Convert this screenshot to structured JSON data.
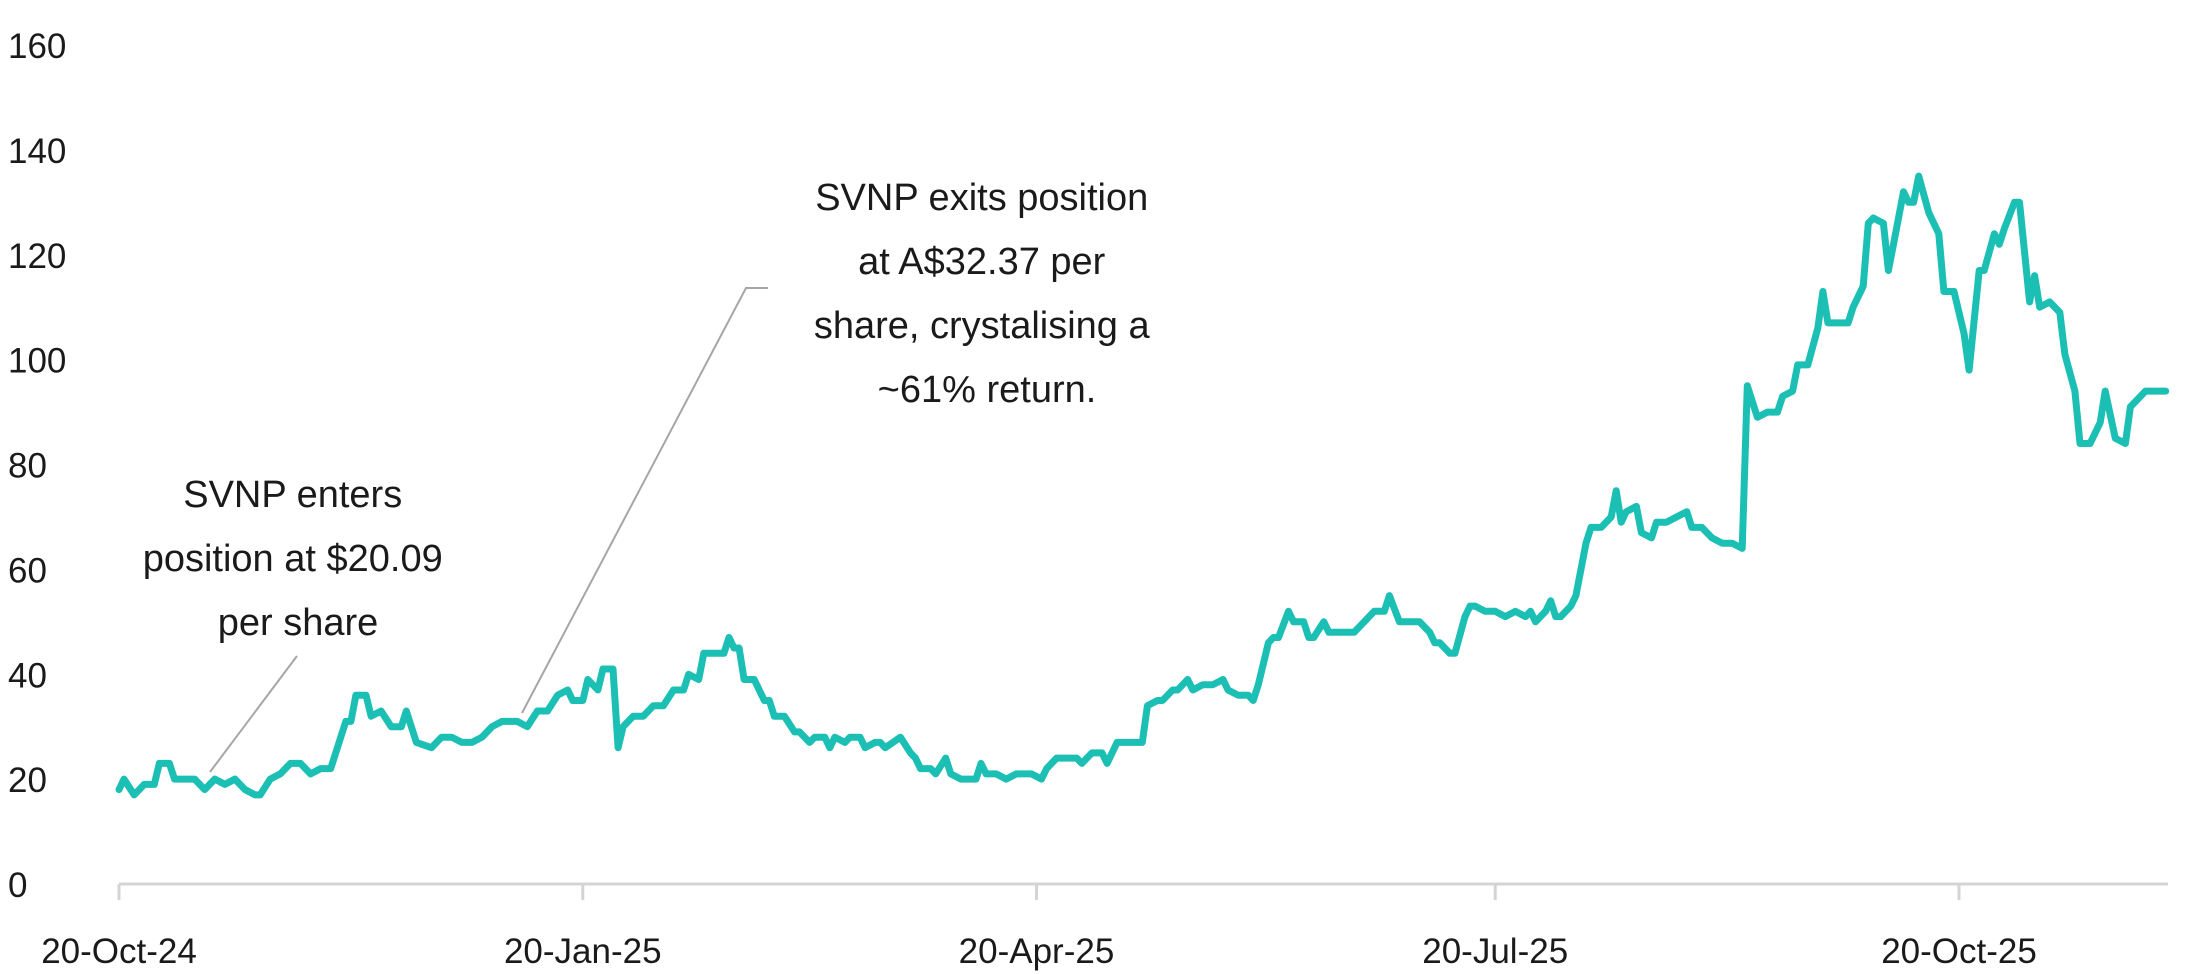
{
  "chart_data": {
    "type": "line",
    "title": "",
    "xlabel": "",
    "ylabel": "",
    "ylim": [
      0,
      160
    ],
    "yticks": [
      "0",
      "20",
      "40",
      "60",
      "80",
      "100",
      "120",
      "140",
      "160"
    ],
    "xlim": [
      "2024-10-20",
      "2025-11-30"
    ],
    "xticks": [
      {
        "date": "2024-10-20",
        "label": "20-Oct-24"
      },
      {
        "date": "2025-01-20",
        "label": "20-Jan-25"
      },
      {
        "date": "2025-04-20",
        "label": "20-Apr-25"
      },
      {
        "date": "2025-07-20",
        "label": "20-Jul-25"
      },
      {
        "date": "2025-10-20",
        "label": "20-Oct-25"
      }
    ],
    "grid": false,
    "legend": "none",
    "line_color": "#1cbfb4",
    "annotations": [
      {
        "lines": [
          "SVNP enters",
          "position at $20.09",
          "per share"
        ],
        "date": "2024-11-06",
        "value": 19
      },
      {
        "lines": [
          "SVNP exits position",
          "at A$32.37 per",
          "share, crystalising a",
          "~61% return."
        ],
        "date": "2025-01-09",
        "value": 31
      }
    ],
    "series": [
      {
        "points": [
          [
            "2024-10-20",
            18
          ],
          [
            "2024-10-21",
            20
          ],
          [
            "2024-10-23",
            17
          ],
          [
            "2024-10-25",
            19
          ],
          [
            "2024-10-27",
            19
          ],
          [
            "2024-10-28",
            23
          ],
          [
            "2024-10-30",
            23
          ],
          [
            "2024-10-31",
            20
          ],
          [
            "2024-11-02",
            20
          ],
          [
            "2024-11-04",
            20
          ],
          [
            "2024-11-06",
            18
          ],
          [
            "2024-11-08",
            20
          ],
          [
            "2024-11-10",
            19
          ],
          [
            "2024-11-12",
            20
          ],
          [
            "2024-11-14",
            18
          ],
          [
            "2024-11-16",
            17
          ],
          [
            "2024-11-17",
            17
          ],
          [
            "2024-11-19",
            20
          ],
          [
            "2024-11-21",
            21
          ],
          [
            "2024-11-23",
            23
          ],
          [
            "2024-11-25",
            23
          ],
          [
            "2024-11-27",
            21
          ],
          [
            "2024-11-29",
            22
          ],
          [
            "2024-12-01",
            22
          ],
          [
            "2024-12-04",
            31
          ],
          [
            "2024-12-05",
            31
          ],
          [
            "2024-12-06",
            36
          ],
          [
            "2024-12-08",
            36
          ],
          [
            "2024-12-09",
            32
          ],
          [
            "2024-12-11",
            33
          ],
          [
            "2024-12-13",
            30
          ],
          [
            "2024-12-15",
            30
          ],
          [
            "2024-12-16",
            33
          ],
          [
            "2024-12-18",
            27
          ],
          [
            "2024-12-21",
            26
          ],
          [
            "2024-12-23",
            28
          ],
          [
            "2024-12-25",
            28
          ],
          [
            "2024-12-27",
            27
          ],
          [
            "2024-12-29",
            27
          ],
          [
            "2024-12-31",
            28
          ],
          [
            "2025-01-02",
            30
          ],
          [
            "2025-01-04",
            31
          ],
          [
            "2025-01-07",
            31
          ],
          [
            "2025-01-09",
            30
          ],
          [
            "2025-01-11",
            33
          ],
          [
            "2025-01-13",
            33
          ],
          [
            "2025-01-15",
            36
          ],
          [
            "2025-01-17",
            37
          ],
          [
            "2025-01-18",
            35
          ],
          [
            "2025-01-20",
            35
          ],
          [
            "2025-01-21",
            39
          ],
          [
            "2025-01-23",
            37
          ],
          [
            "2025-01-24",
            41
          ],
          [
            "2025-01-26",
            41
          ],
          [
            "2025-01-27",
            26
          ],
          [
            "2025-01-28",
            30
          ],
          [
            "2025-01-30",
            32
          ],
          [
            "2025-02-01",
            32
          ],
          [
            "2025-02-03",
            34
          ],
          [
            "2025-02-05",
            34
          ],
          [
            "2025-02-07",
            37
          ],
          [
            "2025-02-09",
            37
          ],
          [
            "2025-02-10",
            40
          ],
          [
            "2025-02-12",
            39
          ],
          [
            "2025-02-13",
            44
          ],
          [
            "2025-02-15",
            44
          ],
          [
            "2025-02-17",
            44
          ],
          [
            "2025-02-18",
            47
          ],
          [
            "2025-02-19",
            45
          ],
          [
            "2025-02-20",
            45
          ],
          [
            "2025-02-21",
            39
          ],
          [
            "2025-02-23",
            39
          ],
          [
            "2025-02-25",
            35
          ],
          [
            "2025-02-26",
            35
          ],
          [
            "2025-02-27",
            32
          ],
          [
            "2025-03-01",
            32
          ],
          [
            "2025-03-03",
            29
          ],
          [
            "2025-03-04",
            29
          ],
          [
            "2025-03-06",
            27
          ],
          [
            "2025-03-07",
            28
          ],
          [
            "2025-03-09",
            28
          ],
          [
            "2025-03-10",
            26
          ],
          [
            "2025-03-11",
            28
          ],
          [
            "2025-03-13",
            27
          ],
          [
            "2025-03-14",
            28
          ],
          [
            "2025-03-16",
            28
          ],
          [
            "2025-03-17",
            26
          ],
          [
            "2025-03-19",
            27
          ],
          [
            "2025-03-20",
            27
          ],
          [
            "2025-03-21",
            26
          ],
          [
            "2025-03-24",
            28
          ],
          [
            "2025-03-26",
            25
          ],
          [
            "2025-03-27",
            24
          ],
          [
            "2025-03-28",
            22
          ],
          [
            "2025-03-30",
            22
          ],
          [
            "2025-03-31",
            21
          ],
          [
            "2025-04-02",
            24
          ],
          [
            "2025-04-03",
            21
          ],
          [
            "2025-04-05",
            20
          ],
          [
            "2025-04-07",
            20
          ],
          [
            "2025-04-08",
            20
          ],
          [
            "2025-04-09",
            23
          ],
          [
            "2025-04-10",
            21
          ],
          [
            "2025-04-12",
            21
          ],
          [
            "2025-04-14",
            20
          ],
          [
            "2025-04-16",
            21
          ],
          [
            "2025-04-19",
            21
          ],
          [
            "2025-04-21",
            20
          ],
          [
            "2025-04-22",
            22
          ],
          [
            "2025-04-24",
            24
          ],
          [
            "2025-04-26",
            24
          ],
          [
            "2025-04-28",
            24
          ],
          [
            "2025-04-29",
            23
          ],
          [
            "2025-05-01",
            25
          ],
          [
            "2025-05-03",
            25
          ],
          [
            "2025-05-04",
            23
          ],
          [
            "2025-05-06",
            27
          ],
          [
            "2025-05-09",
            27
          ],
          [
            "2025-05-11",
            27
          ],
          [
            "2025-05-12",
            34
          ],
          [
            "2025-05-14",
            35
          ],
          [
            "2025-05-15",
            35
          ],
          [
            "2025-05-17",
            37
          ],
          [
            "2025-05-18",
            37
          ],
          [
            "2025-05-20",
            39
          ],
          [
            "2025-05-21",
            37
          ],
          [
            "2025-05-23",
            38
          ],
          [
            "2025-05-25",
            38
          ],
          [
            "2025-05-27",
            39
          ],
          [
            "2025-05-28",
            37
          ],
          [
            "2025-05-30",
            36
          ],
          [
            "2025-06-01",
            36
          ],
          [
            "2025-06-02",
            35
          ],
          [
            "2025-06-03",
            38
          ],
          [
            "2025-06-05",
            46
          ],
          [
            "2025-06-06",
            47
          ],
          [
            "2025-06-07",
            47
          ],
          [
            "2025-06-09",
            52
          ],
          [
            "2025-06-10",
            50
          ],
          [
            "2025-06-12",
            50
          ],
          [
            "2025-06-13",
            47
          ],
          [
            "2025-06-14",
            47
          ],
          [
            "2025-06-16",
            50
          ],
          [
            "2025-06-17",
            48
          ],
          [
            "2025-06-19",
            48
          ],
          [
            "2025-06-22",
            48
          ],
          [
            "2025-06-24",
            50
          ],
          [
            "2025-06-26",
            52
          ],
          [
            "2025-06-28",
            52
          ],
          [
            "2025-06-29",
            55
          ],
          [
            "2025-07-01",
            50
          ],
          [
            "2025-07-03",
            50
          ],
          [
            "2025-07-05",
            50
          ],
          [
            "2025-07-07",
            48
          ],
          [
            "2025-07-08",
            46
          ],
          [
            "2025-07-09",
            46
          ],
          [
            "2025-07-11",
            44
          ],
          [
            "2025-07-12",
            44
          ],
          [
            "2025-07-14",
            51
          ],
          [
            "2025-07-15",
            53
          ],
          [
            "2025-07-16",
            53
          ],
          [
            "2025-07-18",
            52
          ],
          [
            "2025-07-20",
            52
          ],
          [
            "2025-07-22",
            51
          ],
          [
            "2025-07-24",
            52
          ],
          [
            "2025-07-26",
            51
          ],
          [
            "2025-07-27",
            52
          ],
          [
            "2025-07-28",
            50
          ],
          [
            "2025-07-30",
            52
          ],
          [
            "2025-07-31",
            54
          ],
          [
            "2025-08-01",
            51
          ],
          [
            "2025-08-02",
            51
          ],
          [
            "2025-08-04",
            53
          ],
          [
            "2025-08-05",
            55
          ],
          [
            "2025-08-07",
            65
          ],
          [
            "2025-08-08",
            68
          ],
          [
            "2025-08-10",
            68
          ],
          [
            "2025-08-12",
            70
          ],
          [
            "2025-08-13",
            75
          ],
          [
            "2025-08-14",
            69
          ],
          [
            "2025-08-15",
            71
          ],
          [
            "2025-08-17",
            72
          ],
          [
            "2025-08-18",
            67
          ],
          [
            "2025-08-20",
            66
          ],
          [
            "2025-08-21",
            69
          ],
          [
            "2025-08-23",
            69
          ],
          [
            "2025-08-25",
            70
          ],
          [
            "2025-08-27",
            71
          ],
          [
            "2025-08-28",
            68
          ],
          [
            "2025-08-30",
            68
          ],
          [
            "2025-09-01",
            66
          ],
          [
            "2025-09-03",
            65
          ],
          [
            "2025-09-04",
            65
          ],
          [
            "2025-09-05",
            65
          ],
          [
            "2025-09-07",
            64
          ],
          [
            "2025-09-08",
            95
          ],
          [
            "2025-09-10",
            89
          ],
          [
            "2025-09-12",
            90
          ],
          [
            "2025-09-14",
            90
          ],
          [
            "2025-09-15",
            93
          ],
          [
            "2025-09-17",
            94
          ],
          [
            "2025-09-18",
            99
          ],
          [
            "2025-09-20",
            99
          ],
          [
            "2025-09-22",
            106
          ],
          [
            "2025-09-23",
            113
          ],
          [
            "2025-09-24",
            107
          ],
          [
            "2025-09-26",
            107
          ],
          [
            "2025-09-28",
            107
          ],
          [
            "2025-09-29",
            110
          ],
          [
            "2025-10-01",
            114
          ],
          [
            "2025-10-02",
            126
          ],
          [
            "2025-10-03",
            127
          ],
          [
            "2025-10-05",
            126
          ],
          [
            "2025-10-06",
            117
          ],
          [
            "2025-10-07",
            122
          ],
          [
            "2025-10-09",
            132
          ],
          [
            "2025-10-10",
            130
          ],
          [
            "2025-10-11",
            130
          ],
          [
            "2025-10-12",
            135
          ],
          [
            "2025-10-14",
            128
          ],
          [
            "2025-10-16",
            124
          ],
          [
            "2025-10-17",
            113
          ],
          [
            "2025-10-19",
            113
          ],
          [
            "2025-10-21",
            105
          ],
          [
            "2025-10-22",
            98
          ],
          [
            "2025-10-24",
            117
          ],
          [
            "2025-10-25",
            117
          ],
          [
            "2025-10-27",
            124
          ],
          [
            "2025-10-28",
            122
          ],
          [
            "2025-10-29",
            125
          ],
          [
            "2025-10-31",
            130
          ],
          [
            "2025-11-01",
            130
          ],
          [
            "2025-11-03",
            111
          ],
          [
            "2025-11-04",
            116
          ],
          [
            "2025-11-05",
            110
          ],
          [
            "2025-11-07",
            111
          ],
          [
            "2025-11-09",
            109
          ],
          [
            "2025-11-10",
            101
          ],
          [
            "2025-11-12",
            94
          ],
          [
            "2025-11-13",
            84
          ],
          [
            "2025-11-15",
            84
          ],
          [
            "2025-11-17",
            88
          ],
          [
            "2025-11-18",
            94
          ],
          [
            "2025-11-20",
            85
          ],
          [
            "2025-11-22",
            84
          ],
          [
            "2025-11-23",
            91
          ],
          [
            "2025-11-25",
            93
          ],
          [
            "2025-11-26",
            94
          ],
          [
            "2025-11-29",
            94
          ],
          [
            "2025-11-30",
            94
          ]
        ]
      }
    ]
  }
}
